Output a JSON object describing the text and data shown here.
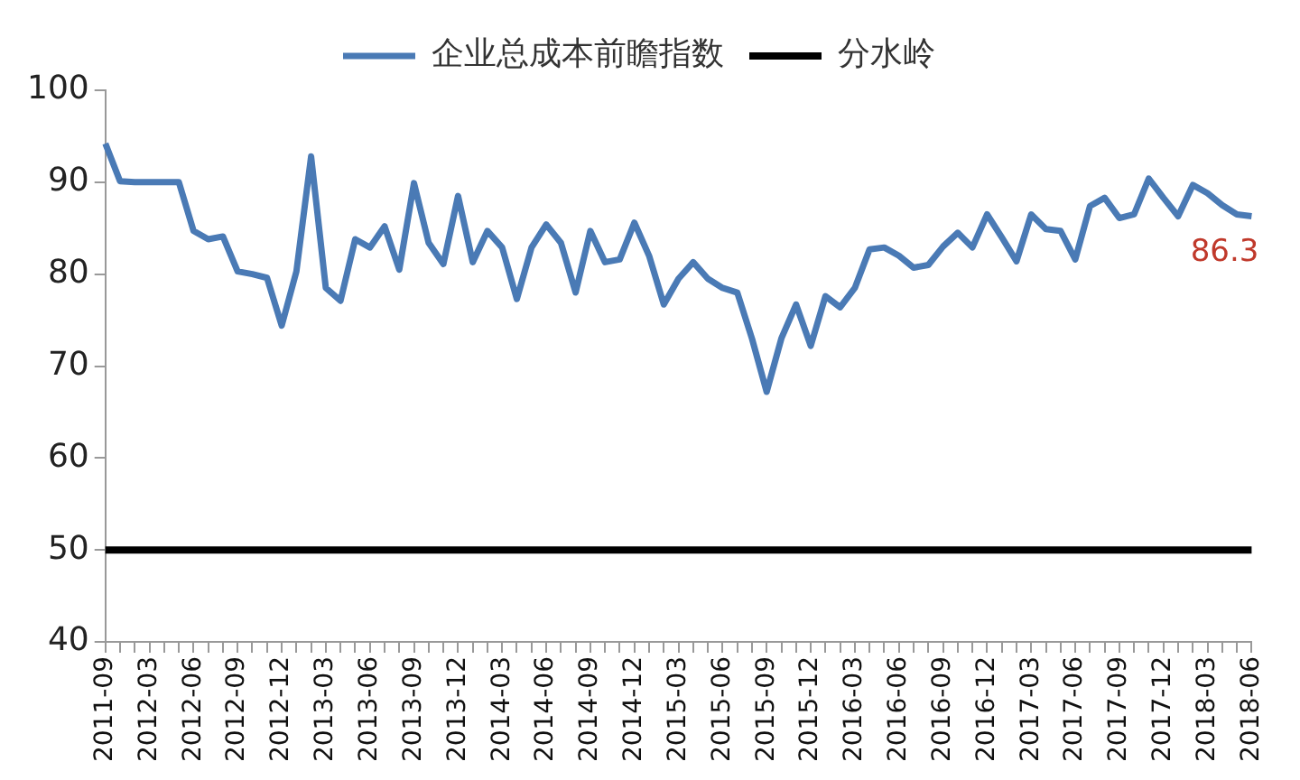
{
  "chart_data": {
    "type": "line",
    "categories": [
      "2011-09",
      null,
      null,
      "2012-03",
      null,
      null,
      "2012-06",
      null,
      null,
      "2012-09",
      null,
      null,
      "2012-12",
      null,
      null,
      "2013-03",
      null,
      null,
      "2013-06",
      null,
      null,
      "2013-09",
      null,
      null,
      "2013-12",
      null,
      null,
      "2014-03",
      null,
      null,
      "2014-06",
      null,
      null,
      "2014-09",
      null,
      null,
      "2014-12",
      null,
      null,
      "2015-03",
      null,
      null,
      "2015-06",
      null,
      null,
      "2015-09",
      null,
      null,
      "2015-12",
      null,
      null,
      "2016-03",
      null,
      null,
      "2016-06",
      null,
      null,
      "2016-09",
      null,
      null,
      "2016-12",
      null,
      null,
      "2017-03",
      null,
      null,
      "2017-06",
      null,
      null,
      "2017-09",
      null,
      null,
      "2017-12",
      null,
      null,
      "2018-03",
      null,
      null,
      "2018-06"
    ],
    "series": [
      {
        "name": "企业总成本前瞻指数",
        "color": "#4a7ab5",
        "values": [
          94.2,
          90.1,
          90,
          90,
          90,
          90,
          84.7,
          83.8,
          84.1,
          80.3,
          80,
          79.6,
          74.4,
          80.3,
          92.8,
          78.5,
          77.1,
          83.8,
          82.9,
          85.2,
          80.5,
          89.9,
          83.4,
          81.1,
          88.5,
          81.3,
          84.7,
          82.9,
          77.3,
          82.9,
          85.4,
          83.4,
          78,
          84.7,
          81.3,
          81.6,
          85.6,
          82,
          76.7,
          79.5,
          81.3,
          79.5,
          78.5,
          78,
          73,
          67.2,
          73,
          76.7,
          72.2,
          77.6,
          76.4,
          78.5,
          82.7,
          82.9,
          82,
          80.7,
          81,
          83,
          84.5,
          82.9,
          86.5,
          84,
          81.4,
          86.5,
          84.9,
          84.7,
          81.6,
          87.4,
          88.3,
          86.1,
          86.5,
          90.4,
          88.3,
          86.3,
          89.7,
          88.8,
          87.5,
          86.5,
          86.3
        ],
        "value_labels": [
          null,
          null,
          null,
          null,
          null,
          null,
          null,
          null,
          null,
          null,
          null,
          null,
          null,
          null,
          null,
          null,
          null,
          null,
          null,
          null,
          null,
          null,
          null,
          null,
          null,
          null,
          null,
          null,
          null,
          null,
          null,
          null,
          null,
          null,
          null,
          null,
          null,
          null,
          null,
          null,
          null,
          null,
          null,
          null,
          null,
          null,
          null,
          null,
          null,
          null,
          null,
          null,
          null,
          null,
          null,
          null,
          null,
          null,
          null,
          null,
          null,
          null,
          null,
          null,
          null,
          null,
          null,
          null,
          null,
          null,
          null,
          null,
          null,
          null,
          null,
          null,
          null,
          null,
          "86.3"
        ]
      },
      {
        "name": "分水岭",
        "color": "#000000",
        "values": [
          50,
          50,
          50,
          50,
          50,
          50,
          50,
          50,
          50,
          50,
          50,
          50,
          50,
          50,
          50,
          50,
          50,
          50,
          50,
          50,
          50,
          50,
          50,
          50,
          50,
          50,
          50,
          50,
          50,
          50,
          50,
          50,
          50,
          50,
          50,
          50,
          50,
          50,
          50,
          50,
          50,
          50,
          50,
          50,
          50,
          50,
          50,
          50,
          50,
          50,
          50,
          50,
          50,
          50,
          50,
          50,
          50,
          50,
          50,
          50,
          50,
          50,
          50,
          50,
          50,
          50,
          50,
          50,
          50,
          50,
          50,
          50,
          50,
          50,
          50,
          50,
          50,
          50,
          50
        ]
      }
    ],
    "ylim": [
      40,
      100
    ],
    "yticks": [
      40,
      50,
      60,
      70,
      80,
      90,
      100
    ],
    "grid": false,
    "legend": "top",
    "marker": "none",
    "line_style": "solid"
  }
}
